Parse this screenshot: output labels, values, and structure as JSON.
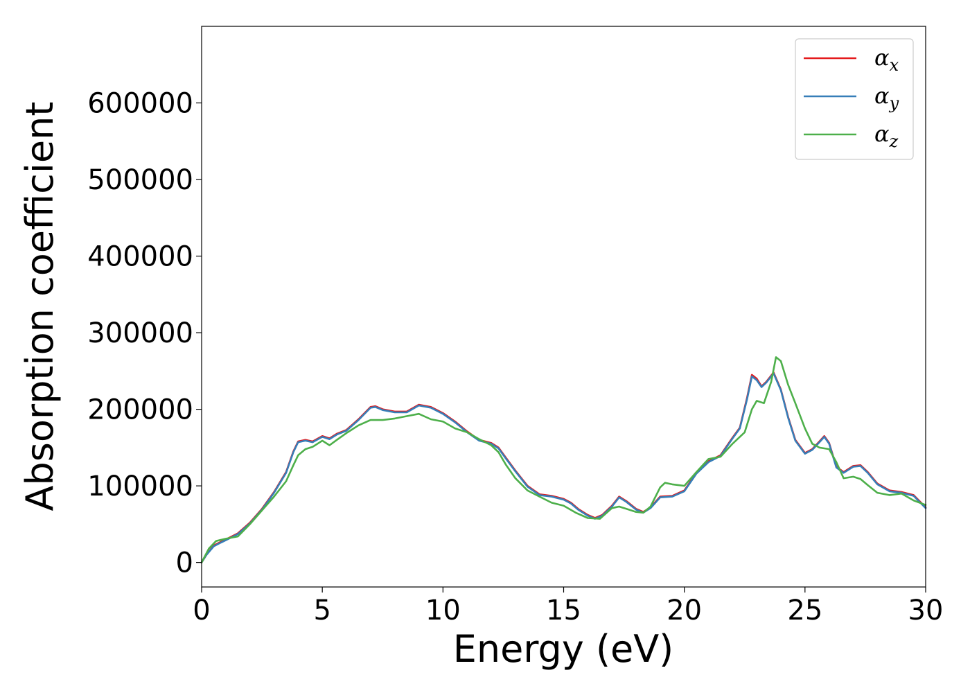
{
  "chart_data": {
    "type": "line",
    "title": "",
    "xlabel": "Energy (eV)",
    "ylabel": "Absorption coefficient",
    "xlim": [
      0,
      30
    ],
    "ylim": [
      -32000,
      700000
    ],
    "xticks": [
      0,
      5,
      10,
      15,
      20,
      25,
      30
    ],
    "yticks": [
      0,
      100000,
      200000,
      300000,
      400000,
      500000,
      600000
    ],
    "xtick_labels": [
      "0",
      "5",
      "10",
      "15",
      "20",
      "25",
      "30"
    ],
    "ytick_labels": [
      "0",
      "100000",
      "200000",
      "300000",
      "400000",
      "500000",
      "600000"
    ],
    "grid": false,
    "legend_position": "top-right",
    "colors": {
      "x": "#e41a1c",
      "y": "#377eb8",
      "z": "#4daf4a"
    },
    "series": [
      {
        "name": "αx",
        "legend_base": "α",
        "legend_sub": "x",
        "color": "#e41a1c",
        "x": [
          0,
          0.2,
          0.5,
          0.8,
          1.0,
          1.5,
          2.0,
          2.5,
          3.0,
          3.5,
          3.8,
          4.0,
          4.3,
          4.6,
          5.0,
          5.3,
          5.6,
          6.0,
          6.5,
          7.0,
          7.2,
          7.5,
          8.0,
          8.5,
          9.0,
          9.5,
          10.0,
          10.5,
          11.0,
          11.5,
          12.0,
          12.3,
          12.6,
          13.0,
          13.5,
          14.0,
          14.5,
          15.0,
          15.3,
          15.6,
          16.0,
          16.3,
          16.6,
          17.0,
          17.3,
          17.6,
          18.0,
          18.3,
          18.6,
          19.0,
          19.5,
          20.0,
          20.5,
          21.0,
          21.5,
          22.0,
          22.3,
          22.6,
          22.8,
          23.0,
          23.2,
          23.4,
          23.7,
          24.0,
          24.3,
          24.6,
          25.0,
          25.3,
          25.6,
          25.8,
          26.0,
          26.3,
          26.6,
          27.0,
          27.3,
          27.6,
          28.0,
          28.5,
          29.0,
          29.5,
          30.0
        ],
        "y": [
          0,
          10000,
          22000,
          27000,
          30000,
          38000,
          52000,
          70000,
          92000,
          118000,
          145000,
          158000,
          160000,
          158000,
          165000,
          162000,
          168000,
          173000,
          187000,
          203000,
          204000,
          200000,
          197000,
          197000,
          206000,
          203000,
          195000,
          184000,
          171000,
          160000,
          156000,
          150000,
          137000,
          120000,
          100000,
          89000,
          87000,
          83000,
          78000,
          70000,
          62000,
          58000,
          62000,
          74000,
          86000,
          80000,
          70000,
          66000,
          72000,
          86000,
          87000,
          94000,
          117000,
          132000,
          140000,
          163000,
          176000,
          215000,
          245000,
          240000,
          230000,
          236000,
          248000,
          226000,
          190000,
          160000,
          143000,
          148000,
          158000,
          165000,
          156000,
          125000,
          118000,
          126000,
          127000,
          118000,
          103000,
          94000,
          92000,
          88000,
          72000
        ]
      },
      {
        "name": "αy",
        "legend_base": "α",
        "legend_sub": "y",
        "color": "#377eb8",
        "x": [
          0,
          0.2,
          0.5,
          0.8,
          1.0,
          1.5,
          2.0,
          2.5,
          3.0,
          3.5,
          3.8,
          4.0,
          4.3,
          4.6,
          5.0,
          5.3,
          5.6,
          6.0,
          6.5,
          7.0,
          7.2,
          7.5,
          8.0,
          8.5,
          9.0,
          9.5,
          10.0,
          10.5,
          11.0,
          11.5,
          12.0,
          12.3,
          12.6,
          13.0,
          13.5,
          14.0,
          14.5,
          15.0,
          15.3,
          15.6,
          16.0,
          16.3,
          16.6,
          17.0,
          17.3,
          17.6,
          18.0,
          18.3,
          18.6,
          19.0,
          19.5,
          20.0,
          20.5,
          21.0,
          21.5,
          22.0,
          22.3,
          22.6,
          22.8,
          23.0,
          23.2,
          23.4,
          23.7,
          24.0,
          24.3,
          24.6,
          25.0,
          25.3,
          25.6,
          25.8,
          26.0,
          26.3,
          26.6,
          27.0,
          27.3,
          27.6,
          28.0,
          28.5,
          29.0,
          29.5,
          30.0
        ],
        "y": [
          0,
          10000,
          21000,
          26000,
          29000,
          37000,
          51000,
          69000,
          91000,
          117000,
          144000,
          157000,
          159000,
          157000,
          164000,
          161000,
          167000,
          172000,
          186000,
          202000,
          203000,
          199000,
          196000,
          196000,
          205000,
          202000,
          194000,
          183000,
          170000,
          159000,
          155000,
          149000,
          136000,
          119000,
          99000,
          88000,
          86000,
          82000,
          77000,
          69000,
          61000,
          57000,
          61000,
          73000,
          85000,
          79000,
          69000,
          65000,
          71000,
          85000,
          86000,
          93000,
          116000,
          131000,
          139000,
          162000,
          175000,
          213000,
          243000,
          238000,
          229000,
          235000,
          247000,
          225000,
          189000,
          159000,
          142000,
          147000,
          157000,
          164000,
          155000,
          124000,
          117000,
          125000,
          126000,
          117000,
          102000,
          93000,
          91000,
          87000,
          71000
        ]
      },
      {
        "name": "αz",
        "legend_base": "α",
        "legend_sub": "z",
        "color": "#4daf4a",
        "x": [
          0,
          0.3,
          0.6,
          1.0,
          1.5,
          2.0,
          2.5,
          3.0,
          3.5,
          3.8,
          4.0,
          4.3,
          4.6,
          5.0,
          5.3,
          5.6,
          6.0,
          6.5,
          7.0,
          7.5,
          8.0,
          8.5,
          9.0,
          9.5,
          10.0,
          10.5,
          11.0,
          11.5,
          12.0,
          12.3,
          12.6,
          13.0,
          13.5,
          14.0,
          14.5,
          15.0,
          15.5,
          16.0,
          16.5,
          17.0,
          17.3,
          17.6,
          18.0,
          18.3,
          18.6,
          19.0,
          19.2,
          19.5,
          20.0,
          20.5,
          21.0,
          21.5,
          22.0,
          22.5,
          22.8,
          23.0,
          23.3,
          23.6,
          23.8,
          24.0,
          24.3,
          24.6,
          25.0,
          25.3,
          25.6,
          26.0,
          26.3,
          26.6,
          27.0,
          27.3,
          27.6,
          28.0,
          28.5,
          29.0,
          29.5,
          30.0
        ],
        "y": [
          0,
          18000,
          28000,
          31000,
          34000,
          50000,
          68000,
          86000,
          106000,
          127000,
          140000,
          148000,
          151000,
          159000,
          153000,
          160000,
          169000,
          179000,
          186000,
          186000,
          188000,
          191000,
          194000,
          187000,
          184000,
          175000,
          170000,
          161000,
          153000,
          144000,
          128000,
          110000,
          94000,
          86000,
          78000,
          74000,
          65000,
          58000,
          57000,
          71000,
          73000,
          70000,
          66000,
          65000,
          73000,
          98000,
          104000,
          102000,
          100000,
          118000,
          135000,
          138000,
          155000,
          170000,
          200000,
          211000,
          208000,
          236000,
          268000,
          263000,
          232000,
          208000,
          175000,
          155000,
          150000,
          148000,
          131000,
          110000,
          112000,
          109000,
          101000,
          91000,
          88000,
          90000,
          81000,
          75000
        ]
      }
    ]
  }
}
